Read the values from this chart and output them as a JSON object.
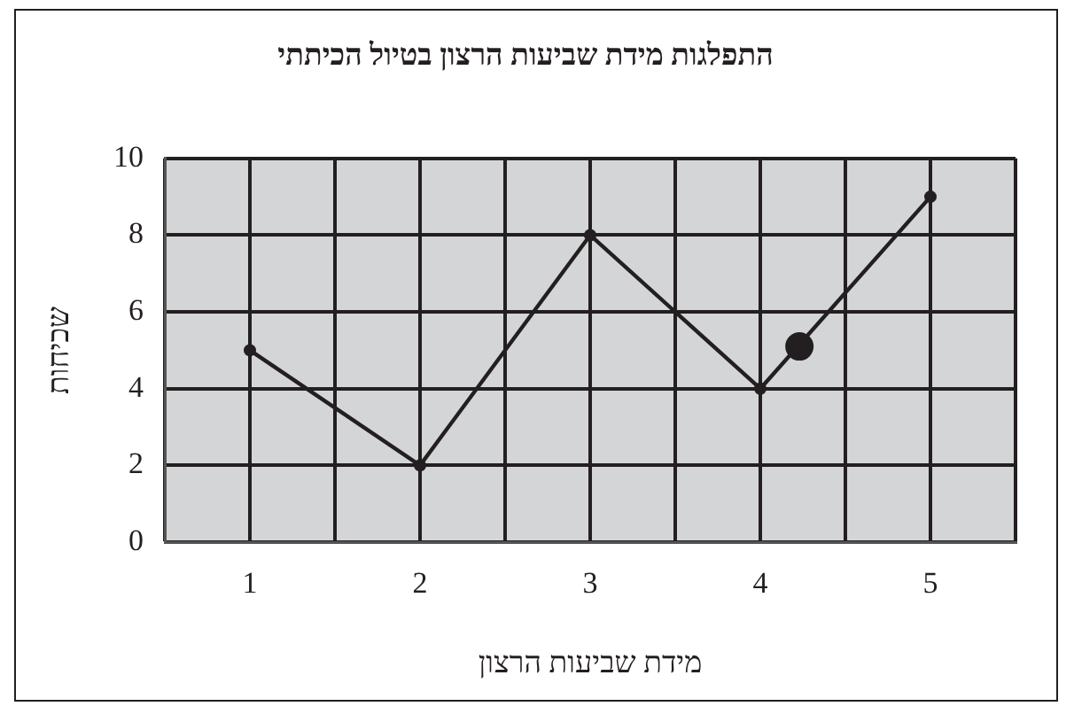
{
  "chart_data": {
    "type": "line",
    "title": "התפלגות מידת שביעות הרצון בטיול הכיתתי",
    "xlabel": "מידת שביעות הרצון",
    "ylabel": "שכיחות",
    "x": [
      1,
      2,
      3,
      4,
      5
    ],
    "series": [
      {
        "color": "#231f20",
        "values": [
          5,
          2,
          8,
          4,
          9
        ]
      },
      {
        "type": "scatter",
        "color": "#231f20",
        "x": [
          4.23
        ],
        "values": [
          5.1
        ]
      }
    ],
    "xlim": [
      0.5,
      5.5
    ],
    "xticks": [
      {
        "value": 0.5,
        "label": null
      },
      1,
      {
        "value": 1.5,
        "label": null
      },
      2,
      {
        "value": 2.5,
        "label": null
      },
      3,
      {
        "value": 3.5,
        "label": null
      },
      4,
      {
        "value": 4.5,
        "label": null
      },
      5,
      {
        "value": 5.5,
        "label": null
      }
    ],
    "ylim": [
      0,
      10
    ],
    "yticks": [
      0,
      2,
      4,
      6,
      8,
      10
    ],
    "grid": true,
    "marker": "circle",
    "line_style": "solid"
  }
}
